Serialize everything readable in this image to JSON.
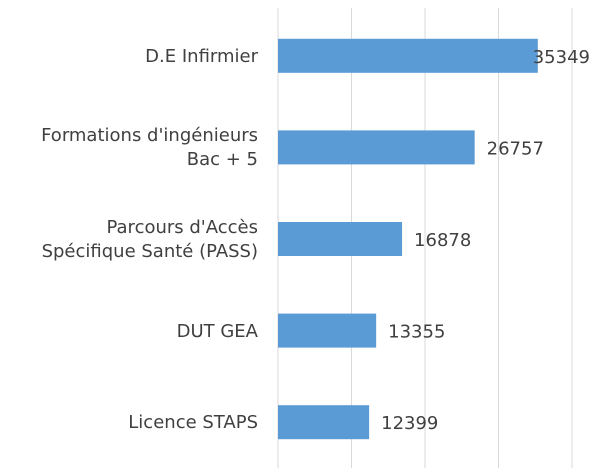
{
  "chart_data": {
    "type": "bar",
    "orientation": "horizontal",
    "categories": [
      "D.E Infirmier",
      "Formations d'ingénieurs\nBac + 5",
      "Parcours d'Accès\nSpécifique Santé (PASS)",
      "DUT GEA",
      "Licence STAPS"
    ],
    "values": [
      35349,
      26757,
      16878,
      13355,
      12399
    ],
    "color": "#5b9bd5",
    "xlim": [
      0,
      40000
    ],
    "xticks": [
      0,
      10000,
      20000,
      30000,
      40000
    ],
    "grid": true
  }
}
